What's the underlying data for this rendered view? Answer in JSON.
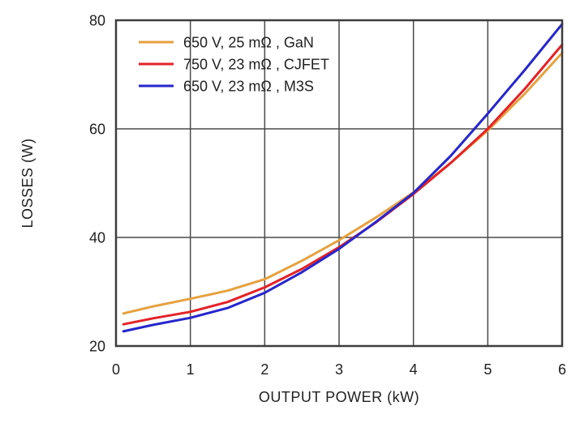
{
  "figure": {
    "background": "#FFFFFF",
    "text_color": "#1F1F1F",
    "axis_color": "#3D3D3D",
    "grid_color": "#4A4A4A"
  },
  "chart_data": {
    "type": "line",
    "title": "",
    "xlabel": "OUTPUT POWER (kW)",
    "ylabel": "LOSSES (W)",
    "xlim": [
      0,
      6
    ],
    "ylim": [
      20,
      80
    ],
    "xticks": [
      0,
      1,
      2,
      3,
      4,
      5,
      6
    ],
    "yticks": [
      20,
      40,
      60,
      80
    ],
    "grid": true,
    "legend_position": "top-left",
    "x": [
      0.1,
      0.5,
      1,
      1.5,
      2,
      2.5,
      3,
      3.5,
      4,
      4.5,
      5,
      5.5,
      6
    ],
    "series": [
      {
        "key": "gan",
        "name": "650 V, 25 mΩ , GaN",
        "color": "#E6A13F",
        "values": [
          26.0,
          27.3,
          28.7,
          30.2,
          32.3,
          35.7,
          39.5,
          43.7,
          48.3,
          53.7,
          59.7,
          66.5,
          74.0
        ]
      },
      {
        "key": "cjfet",
        "name": "750 V, 23 mΩ , CJFET",
        "color": "#E32227",
        "values": [
          24.0,
          25.1,
          26.3,
          28.1,
          30.8,
          34.2,
          38.2,
          42.8,
          48.0,
          53.7,
          60.0,
          67.4,
          75.5
        ]
      },
      {
        "key": "m3s",
        "name": "650 V, 23 mΩ , M3S",
        "color": "#2626CC",
        "values": [
          22.7,
          23.9,
          25.2,
          27.0,
          29.8,
          33.6,
          37.9,
          42.9,
          48.2,
          55.0,
          62.8,
          70.9,
          79.3
        ]
      }
    ]
  }
}
